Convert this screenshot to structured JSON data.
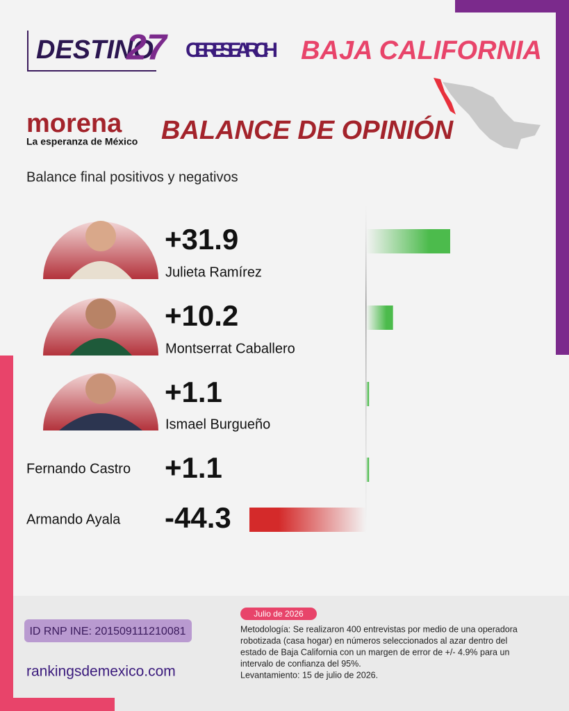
{
  "header": {
    "brand": "DESTINO",
    "brand_number": "27",
    "partner": "CERESEARCH",
    "state": "BAJA CALIFORNIA",
    "party": "morena",
    "party_tagline": "La esperanza de México",
    "title": "BALANCE DE OPINIÓN"
  },
  "chart_data": {
    "type": "bar",
    "orientation": "horizontal",
    "subtitle": "Balance final positivos y negativos",
    "categories": [
      "Julieta Ramírez",
      "Montserrat Caballero",
      "Ismael Burgueño",
      "Fernando Castro",
      "Armando Ayala"
    ],
    "values": [
      31.9,
      10.2,
      1.1,
      1.1,
      -44.3
    ],
    "value_labels": [
      "+31.9",
      "+10.2",
      "+1.1",
      "+1.1",
      "-44.3"
    ],
    "positive_color": "#4cbb4c",
    "negative_color": "#d42a2a"
  },
  "footer": {
    "date": "Julio de 2026",
    "registry": "ID RNP INE: 201509111210081",
    "website": "rankingsdemexico.com",
    "methodology": [
      "Metodología: Se realizaron 400 entrevistas por medio de una operadora",
      "robotizada (casa hogar) en números seleccionados al azar dentro del",
      "estado de Baja California con un margen de error de +/- 4.9% para un",
      "intervalo de confianza del 95%.",
      "Levantamiento: 15 de julio de 2026."
    ]
  }
}
